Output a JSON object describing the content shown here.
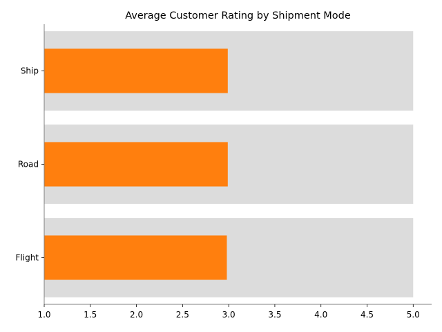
{
  "chart_data": {
    "type": "bar",
    "orientation": "horizontal",
    "title": "Average Customer Rating by Shipment Mode",
    "xlabel": "",
    "ylabel": "",
    "categories": [
      "Ship",
      "Road",
      "Flight"
    ],
    "values": [
      2.99,
      2.99,
      2.98
    ],
    "background_values": [
      5,
      5,
      5
    ],
    "xlim": [
      1.0,
      5.2
    ],
    "xticks": [
      "1.0",
      "1.5",
      "2.0",
      "2.5",
      "3.0",
      "3.5",
      "4.0",
      "4.5",
      "5.0"
    ],
    "grid": false,
    "legend": "none",
    "colors": {
      "bar": "#ff7f0e",
      "background_bar": "#dcdcdc",
      "axis": "#808080"
    }
  }
}
